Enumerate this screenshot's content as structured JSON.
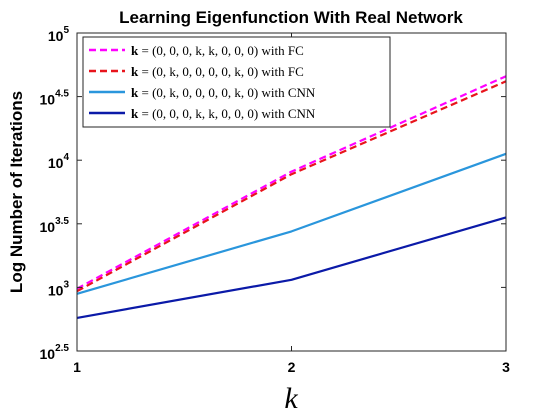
{
  "chart_data": {
    "type": "line",
    "title": "Learning Eigenfunction With Real Network",
    "xlabel": "k",
    "ylabel": "Log Number of Iterations",
    "xlim": [
      1,
      3
    ],
    "ylim_log10": [
      2.5,
      5
    ],
    "y_scale": "log",
    "x_ticks": [
      {
        "value": 1,
        "label": "1"
      },
      {
        "value": 2,
        "label": "2"
      },
      {
        "value": 3,
        "label": "3"
      }
    ],
    "y_ticks": [
      {
        "value": 2.5,
        "base": "10",
        "exp": "2.5"
      },
      {
        "value": 3,
        "base": "10",
        "exp": "3"
      },
      {
        "value": 3.5,
        "base": "10",
        "exp": "3.5"
      },
      {
        "value": 4,
        "base": "10",
        "exp": "4"
      },
      {
        "value": 4.5,
        "base": "10",
        "exp": "4.5"
      },
      {
        "value": 5,
        "base": "10",
        "exp": "5"
      }
    ],
    "grid": false,
    "legend_position": "top-left",
    "x": [
      1,
      2,
      3
    ],
    "series": [
      {
        "name": "k = (0,0,0,k,k,0,0,0) with FC",
        "legend_bold": "k",
        "legend_rest": " = (0, 0, 0, k, k, 0, 0, 0) with FC",
        "color": "#ff00ff",
        "dash": true,
        "log10_values": [
          2.99,
          3.91,
          4.66
        ]
      },
      {
        "name": "k = (0,k,0,0,0,0,k,0) with FC",
        "legend_bold": "k",
        "legend_rest": " = (0, k, 0, 0, 0, 0, k, 0) with FC",
        "color": "#e8141c",
        "dash": true,
        "log10_values": [
          2.97,
          3.89,
          4.62
        ]
      },
      {
        "name": "k = (0,k,0,0,0,0,k,0) with CNN",
        "legend_bold": "k",
        "legend_rest": " = (0, k, 0, 0, 0, 0, k, 0) with CNN",
        "color": "#2a96dc",
        "dash": false,
        "log10_values": [
          2.95,
          3.44,
          4.05
        ]
      },
      {
        "name": "k = (0,0,0,k,k,0,0,0) with CNN",
        "legend_bold": "k",
        "legend_rest": " = (0, 0, 0, k, k, 0, 0, 0) with CNN",
        "color": "#0b1aa8",
        "dash": false,
        "log10_values": [
          2.76,
          3.06,
          3.55
        ]
      }
    ]
  }
}
